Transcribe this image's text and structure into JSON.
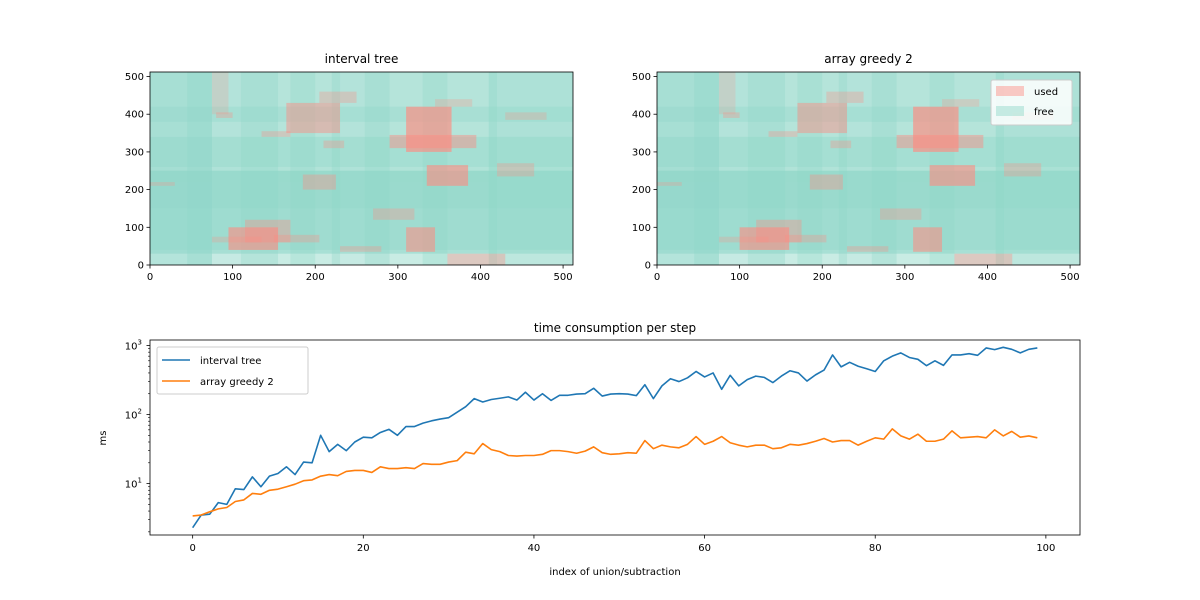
{
  "chart_data": [
    {
      "type": "heatmap",
      "title": "interval tree",
      "xlim": [
        0,
        512
      ],
      "ylim": [
        0,
        512
      ],
      "xticks": [
        0,
        100,
        200,
        300,
        400,
        500
      ],
      "yticks": [
        0,
        100,
        200,
        300,
        400,
        500
      ],
      "colors": {
        "used": "#ff8a80",
        "free": "#8ed6c8"
      },
      "free_strips": [
        {
          "axis": "y",
          "from": 0,
          "to": 512,
          "opacity": 0.25
        },
        {
          "axis": "y",
          "from": 30,
          "to": 250,
          "opacity": 0.55
        },
        {
          "axis": "y",
          "from": 40,
          "to": 120,
          "opacity": 0.35
        },
        {
          "axis": "y",
          "from": 120,
          "to": 220,
          "opacity": 0.35
        },
        {
          "axis": "y",
          "from": 220,
          "to": 340,
          "opacity": 0.4
        },
        {
          "axis": "y",
          "from": 260,
          "to": 420,
          "opacity": 0.35
        },
        {
          "axis": "y",
          "from": 380,
          "to": 512,
          "opacity": 0.35
        },
        {
          "axis": "y",
          "from": 150,
          "to": 250,
          "opacity": 0.3
        },
        {
          "axis": "x",
          "from": 0,
          "to": 75,
          "opacity": 0.55
        },
        {
          "axis": "x",
          "from": 45,
          "to": 155,
          "opacity": 0.35
        },
        {
          "axis": "x",
          "from": 110,
          "to": 200,
          "opacity": 0.3
        },
        {
          "axis": "x",
          "from": 220,
          "to": 290,
          "opacity": 0.35
        },
        {
          "axis": "x",
          "from": 260,
          "to": 360,
          "opacity": 0.3
        },
        {
          "axis": "x",
          "from": 410,
          "to": 512,
          "opacity": 0.45
        },
        {
          "axis": "x",
          "from": 330,
          "to": 420,
          "opacity": 0.3
        },
        {
          "axis": "x",
          "from": 170,
          "to": 230,
          "opacity": 0.3
        }
      ],
      "used_rects": [
        {
          "x0": 95,
          "x1": 155,
          "y0": 40,
          "y1": 100,
          "opacity": 0.6
        },
        {
          "x0": 115,
          "x1": 170,
          "y0": 60,
          "y1": 120,
          "opacity": 0.35
        },
        {
          "x0": 150,
          "x1": 205,
          "y0": 60,
          "y1": 80,
          "opacity": 0.3
        },
        {
          "x0": 75,
          "x1": 135,
          "y0": 60,
          "y1": 75,
          "opacity": 0.25
        },
        {
          "x0": 230,
          "x1": 280,
          "y0": 35,
          "y1": 50,
          "opacity": 0.3
        },
        {
          "x0": 310,
          "x1": 345,
          "y0": 35,
          "y1": 100,
          "opacity": 0.55
        },
        {
          "x0": 360,
          "x1": 430,
          "y0": 0,
          "y1": 30,
          "opacity": 0.35
        },
        {
          "x0": 270,
          "x1": 320,
          "y0": 120,
          "y1": 150,
          "opacity": 0.3
        },
        {
          "x0": 185,
          "x1": 225,
          "y0": 200,
          "y1": 240,
          "opacity": 0.35
        },
        {
          "x0": 335,
          "x1": 385,
          "y0": 210,
          "y1": 265,
          "opacity": 0.6
        },
        {
          "x0": 420,
          "x1": 465,
          "y0": 235,
          "y1": 270,
          "opacity": 0.3
        },
        {
          "x0": 290,
          "x1": 395,
          "y0": 310,
          "y1": 345,
          "opacity": 0.45
        },
        {
          "x0": 310,
          "x1": 365,
          "y0": 300,
          "y1": 420,
          "opacity": 0.65
        },
        {
          "x0": 165,
          "x1": 230,
          "y0": 350,
          "y1": 430,
          "opacity": 0.45
        },
        {
          "x0": 205,
          "x1": 250,
          "y0": 430,
          "y1": 460,
          "opacity": 0.3
        },
        {
          "x0": 345,
          "x1": 390,
          "y0": 420,
          "y1": 440,
          "opacity": 0.25
        },
        {
          "x0": 75,
          "x1": 95,
          "y0": 400,
          "y1": 512,
          "opacity": 0.2
        },
        {
          "x0": 210,
          "x1": 235,
          "y0": 310,
          "y1": 330,
          "opacity": 0.3
        },
        {
          "x0": 430,
          "x1": 480,
          "y0": 385,
          "y1": 405,
          "opacity": 0.25
        },
        {
          "x0": 135,
          "x1": 170,
          "y0": 340,
          "y1": 355,
          "opacity": 0.3
        },
        {
          "x0": 0,
          "x1": 30,
          "y0": 210,
          "y1": 220,
          "opacity": 0.25
        },
        {
          "x0": 80,
          "x1": 100,
          "y0": 390,
          "y1": 405,
          "opacity": 0.3
        }
      ]
    },
    {
      "type": "heatmap",
      "title": "array greedy 2",
      "xlim": [
        0,
        512
      ],
      "ylim": [
        0,
        512
      ],
      "xticks": [
        0,
        100,
        200,
        300,
        400,
        500
      ],
      "yticks": [
        0,
        100,
        200,
        300,
        400,
        500
      ],
      "legend": {
        "placement": "top-right",
        "entries": [
          "used",
          "free"
        ]
      },
      "colors": {
        "used": "#ff8a80",
        "free": "#8ed6c8"
      },
      "free_strips": [
        {
          "axis": "y",
          "from": 0,
          "to": 512,
          "opacity": 0.25
        },
        {
          "axis": "y",
          "from": 30,
          "to": 250,
          "opacity": 0.55
        },
        {
          "axis": "y",
          "from": 40,
          "to": 120,
          "opacity": 0.35
        },
        {
          "axis": "y",
          "from": 120,
          "to": 220,
          "opacity": 0.35
        },
        {
          "axis": "y",
          "from": 220,
          "to": 340,
          "opacity": 0.4
        },
        {
          "axis": "y",
          "from": 260,
          "to": 420,
          "opacity": 0.35
        },
        {
          "axis": "y",
          "from": 380,
          "to": 512,
          "opacity": 0.35
        },
        {
          "axis": "y",
          "from": 150,
          "to": 250,
          "opacity": 0.3
        },
        {
          "axis": "x",
          "from": 0,
          "to": 75,
          "opacity": 0.55
        },
        {
          "axis": "x",
          "from": 45,
          "to": 155,
          "opacity": 0.35
        },
        {
          "axis": "x",
          "from": 110,
          "to": 200,
          "opacity": 0.3
        },
        {
          "axis": "x",
          "from": 220,
          "to": 290,
          "opacity": 0.35
        },
        {
          "axis": "x",
          "from": 260,
          "to": 360,
          "opacity": 0.3
        },
        {
          "axis": "x",
          "from": 410,
          "to": 512,
          "opacity": 0.45
        },
        {
          "axis": "x",
          "from": 330,
          "to": 420,
          "opacity": 0.3
        },
        {
          "axis": "x",
          "from": 170,
          "to": 230,
          "opacity": 0.3
        }
      ],
      "used_rects": [
        {
          "x0": 100,
          "x1": 160,
          "y0": 40,
          "y1": 100,
          "opacity": 0.6
        },
        {
          "x0": 120,
          "x1": 175,
          "y0": 60,
          "y1": 120,
          "opacity": 0.35
        },
        {
          "x0": 155,
          "x1": 205,
          "y0": 60,
          "y1": 80,
          "opacity": 0.3
        },
        {
          "x0": 75,
          "x1": 135,
          "y0": 60,
          "y1": 75,
          "opacity": 0.25
        },
        {
          "x0": 230,
          "x1": 280,
          "y0": 35,
          "y1": 50,
          "opacity": 0.3
        },
        {
          "x0": 310,
          "x1": 345,
          "y0": 35,
          "y1": 100,
          "opacity": 0.55
        },
        {
          "x0": 360,
          "x1": 430,
          "y0": 0,
          "y1": 30,
          "opacity": 0.35
        },
        {
          "x0": 270,
          "x1": 320,
          "y0": 120,
          "y1": 150,
          "opacity": 0.3
        },
        {
          "x0": 185,
          "x1": 225,
          "y0": 200,
          "y1": 240,
          "opacity": 0.35
        },
        {
          "x0": 330,
          "x1": 385,
          "y0": 210,
          "y1": 265,
          "opacity": 0.6
        },
        {
          "x0": 420,
          "x1": 465,
          "y0": 235,
          "y1": 270,
          "opacity": 0.3
        },
        {
          "x0": 290,
          "x1": 395,
          "y0": 310,
          "y1": 345,
          "opacity": 0.45
        },
        {
          "x0": 310,
          "x1": 365,
          "y0": 300,
          "y1": 420,
          "opacity": 0.65
        },
        {
          "x0": 170,
          "x1": 230,
          "y0": 350,
          "y1": 430,
          "opacity": 0.45
        },
        {
          "x0": 205,
          "x1": 250,
          "y0": 430,
          "y1": 460,
          "opacity": 0.3
        },
        {
          "x0": 345,
          "x1": 390,
          "y0": 420,
          "y1": 440,
          "opacity": 0.25
        },
        {
          "x0": 75,
          "x1": 95,
          "y0": 400,
          "y1": 512,
          "opacity": 0.2
        },
        {
          "x0": 210,
          "x1": 235,
          "y0": 310,
          "y1": 330,
          "opacity": 0.3
        },
        {
          "x0": 430,
          "x1": 480,
          "y0": 385,
          "y1": 405,
          "opacity": 0.25
        },
        {
          "x0": 135,
          "x1": 170,
          "y0": 340,
          "y1": 355,
          "opacity": 0.3
        },
        {
          "x0": 0,
          "x1": 30,
          "y0": 210,
          "y1": 220,
          "opacity": 0.25
        },
        {
          "x0": 80,
          "x1": 100,
          "y0": 390,
          "y1": 405,
          "opacity": 0.3
        }
      ]
    },
    {
      "type": "line",
      "title": "time consumption per step",
      "xlabel": "index of union/subtraction",
      "ylabel": "ms",
      "yscale": "log",
      "xlim": [
        -5,
        104
      ],
      "ylim": [
        1.8,
        1200
      ],
      "xticks": [
        0,
        20,
        40,
        60,
        80,
        100
      ],
      "yticks": [
        {
          "value": 10,
          "base": "10",
          "exp": "1"
        },
        {
          "value": 100,
          "base": "10",
          "exp": "2"
        },
        {
          "value": 1000,
          "base": "10",
          "exp": "3"
        }
      ],
      "legend": {
        "placement": "top-left"
      },
      "grid": false,
      "series": [
        {
          "name": "interval tree",
          "color": "#1f77b4",
          "values": [
            2.3,
            3.5,
            3.6,
            5.3,
            5.0,
            8.4,
            8.2,
            12.5,
            9.0,
            12.8,
            14.0,
            17.5,
            13.5,
            20.5,
            20.0,
            50,
            29,
            37,
            30,
            40,
            47,
            46,
            55,
            61,
            50,
            67,
            67,
            75,
            81,
            86,
            90,
            108,
            130,
            170,
            152,
            165,
            172,
            180,
            162,
            210,
            162,
            200,
            160,
            190,
            190,
            198,
            200,
            240,
            185,
            198,
            200,
            198,
            188,
            270,
            170,
            260,
            330,
            300,
            340,
            420,
            350,
            400,
            232,
            370,
            260,
            320,
            360,
            345,
            290,
            360,
            430,
            400,
            305,
            375,
            440,
            730,
            490,
            570,
            500,
            460,
            420,
            600,
            700,
            780,
            670,
            630,
            510,
            600,
            515,
            730,
            730,
            760,
            720,
            920,
            870,
            940,
            880,
            780,
            880,
            920
          ]
        },
        {
          "name": "array greedy 2",
          "color": "#ff7f0e",
          "values": [
            3.4,
            3.5,
            3.9,
            4.3,
            4.5,
            5.5,
            5.8,
            7.2,
            7.0,
            8.0,
            8.3,
            9.0,
            9.8,
            11.0,
            11.3,
            12.8,
            13.5,
            13.0,
            15.0,
            15.5,
            15.5,
            14.5,
            17.5,
            16.5,
            16.5,
            17.0,
            16.5,
            19.5,
            19.0,
            19.0,
            20.5,
            21.5,
            28.5,
            27.0,
            38.0,
            31.0,
            29.0,
            25.5,
            25.0,
            25.5,
            25.5,
            26.5,
            30.0,
            30.0,
            29.0,
            27.5,
            29.5,
            34.0,
            28.0,
            26.5,
            27.0,
            28.0,
            27.5,
            42.0,
            32.0,
            36.0,
            34.0,
            33.0,
            37.0,
            48.0,
            37.0,
            41.0,
            48.0,
            39.0,
            36.0,
            34.0,
            36.0,
            36.0,
            32.0,
            33.0,
            37.0,
            36.0,
            38.0,
            41.0,
            45.0,
            40.0,
            42.0,
            42.0,
            36.0,
            41.0,
            46.0,
            44.0,
            62.0,
            49.0,
            44.0,
            52.0,
            41.0,
            41.0,
            44.0,
            58.0,
            46.0,
            47.0,
            48.0,
            46.0,
            60.0,
            49.0,
            57.0,
            47.0,
            49.0,
            46.0
          ]
        }
      ]
    }
  ]
}
